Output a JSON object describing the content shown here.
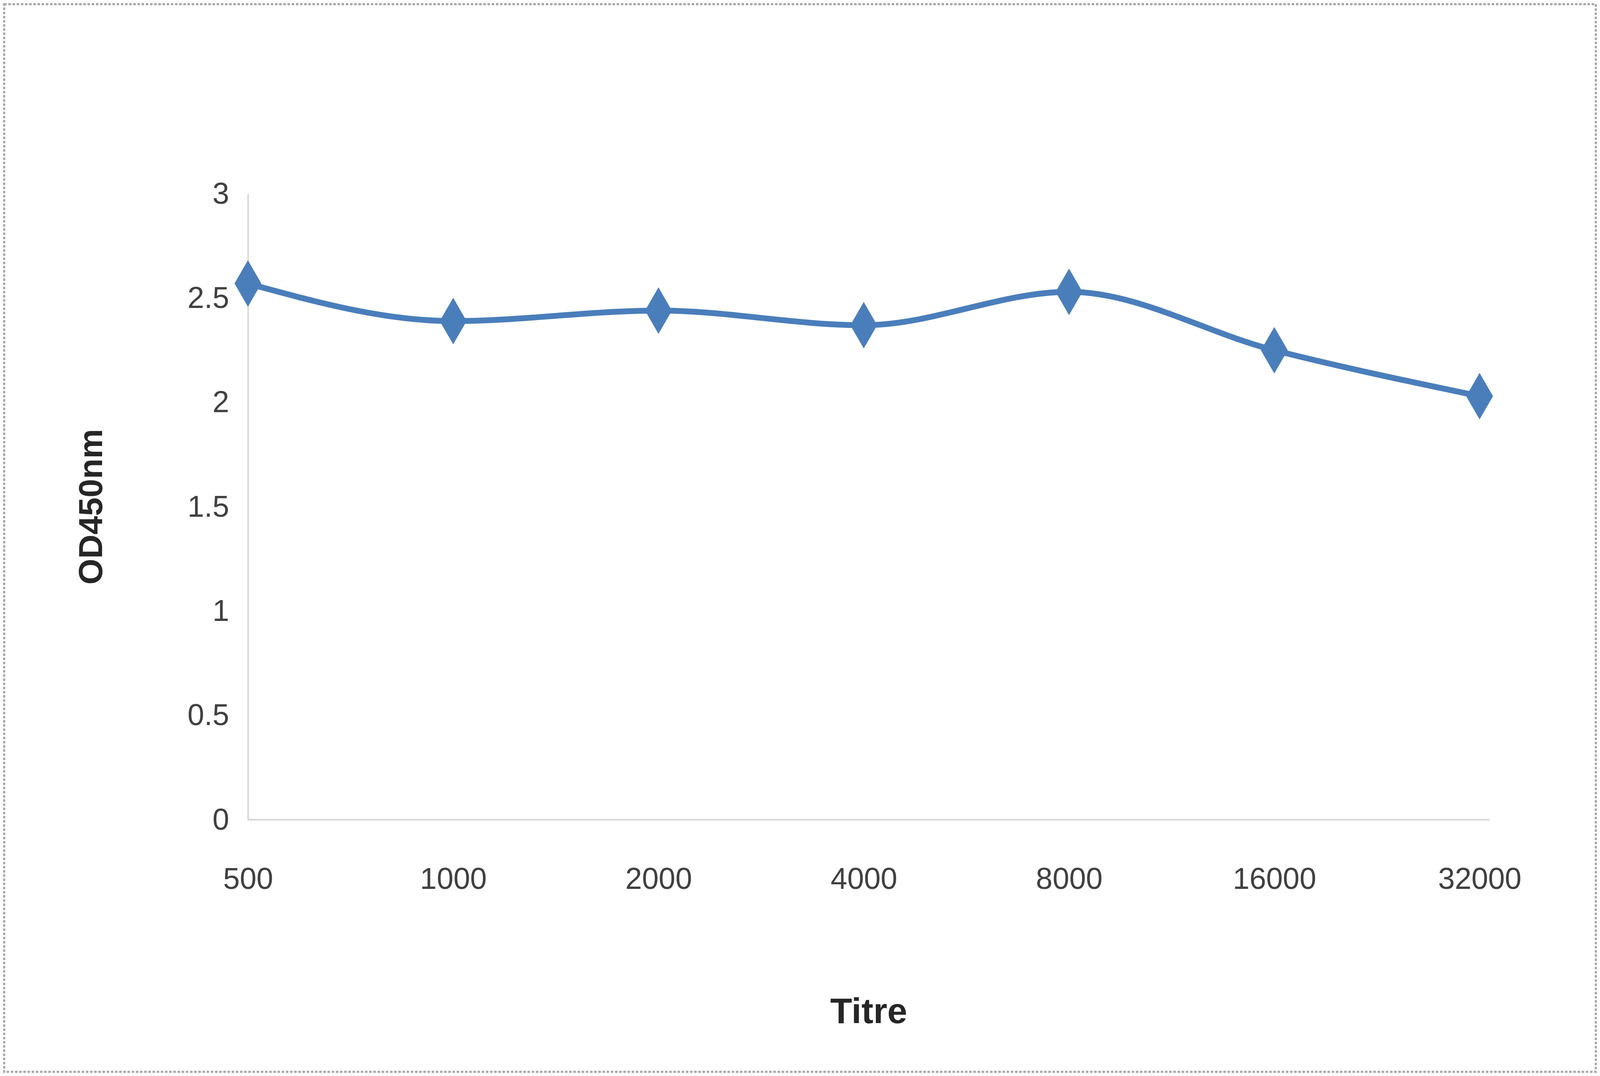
{
  "chart_data": {
    "type": "line",
    "x_label": "Titre",
    "y_label": "OD450nm",
    "categories": [
      "500",
      "1000",
      "2000",
      "4000",
      "8000",
      "16000",
      "32000"
    ],
    "values": [
      2.57,
      2.39,
      2.44,
      2.37,
      2.53,
      2.25,
      2.03
    ],
    "color": "#4a7ebb",
    "marker": "diamond",
    "line_style": "solid",
    "ylim": [
      0,
      3
    ],
    "yticks": [
      0,
      0.5,
      1,
      1.5,
      2,
      2.5,
      3
    ],
    "grid": false
  }
}
